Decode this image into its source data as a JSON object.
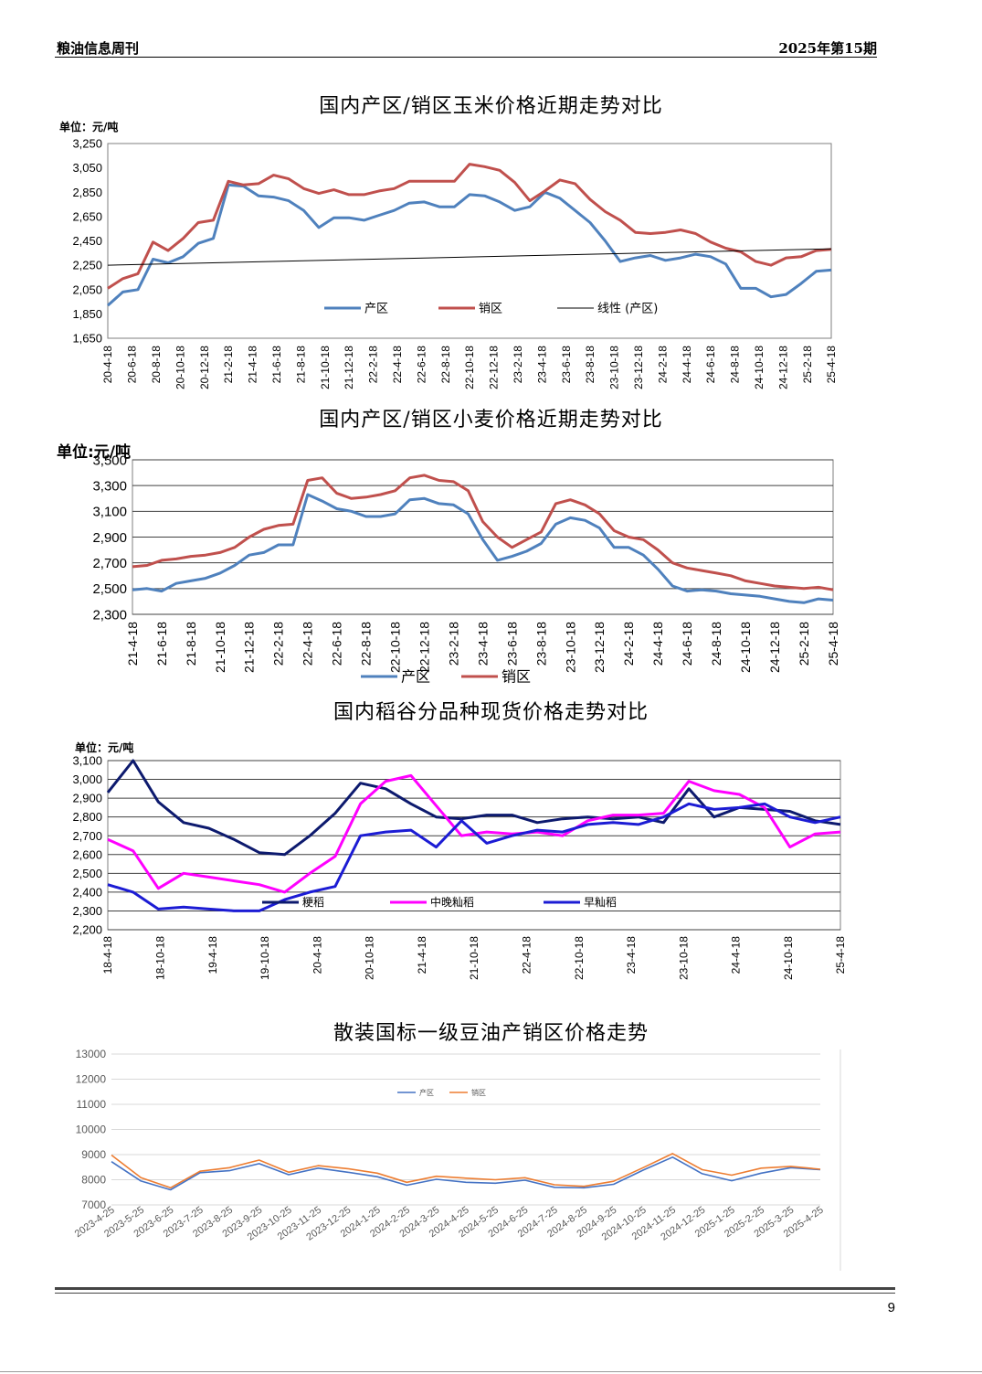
{
  "header": {
    "left": "粮油信息周刊",
    "right": "2025年第15期"
  },
  "page_number": "9",
  "chart_data": [
    {
      "type": "line",
      "title": "国内产区/销区玉米价格近期走势对比",
      "unit_label": "单位：元/吨",
      "ylim": [
        1650,
        3250
      ],
      "yticks": [
        "3,250",
        "3,050",
        "2,850",
        "2,650",
        "2,450",
        "2,250",
        "2,050",
        "1,850",
        "1,650"
      ],
      "x_labels": [
        "20-4-18",
        "20-6-18",
        "20-8-18",
        "20-10-18",
        "20-12-18",
        "21-2-18",
        "21-4-18",
        "21-6-18",
        "21-8-18",
        "21-10-18",
        "21-12-18",
        "22-2-18",
        "22-4-18",
        "22-6-18",
        "22-8-18",
        "22-10-18",
        "22-12-18",
        "23-2-18",
        "23-4-18",
        "23-6-18",
        "23-8-18",
        "23-10-18",
        "23-12-18",
        "24-2-18",
        "24-4-18",
        "24-6-18",
        "24-8-18",
        "24-10-18",
        "24-12-18",
        "25-2-18",
        "25-4-18"
      ],
      "series": [
        {
          "name": "产区",
          "color": "#4f81bd",
          "values": [
            1920,
            2030,
            2050,
            2300,
            2270,
            2320,
            2430,
            2470,
            2910,
            2900,
            2820,
            2810,
            2780,
            2700,
            2560,
            2640,
            2640,
            2620,
            2660,
            2700,
            2760,
            2770,
            2730,
            2730,
            2830,
            2820,
            2770,
            2700,
            2730,
            2850,
            2800,
            2700,
            2600,
            2450,
            2280,
            2310,
            2330,
            2290,
            2310,
            2340,
            2320,
            2260,
            2060,
            2060,
            1990,
            2010,
            2100,
            2200,
            2210
          ]
        },
        {
          "name": "销区",
          "color": "#c0504d",
          "values": [
            2060,
            2140,
            2180,
            2440,
            2370,
            2470,
            2600,
            2620,
            2940,
            2910,
            2920,
            2990,
            2960,
            2880,
            2840,
            2870,
            2830,
            2830,
            2860,
            2880,
            2940,
            2940,
            2940,
            2940,
            3080,
            3060,
            3030,
            2930,
            2780,
            2860,
            2950,
            2920,
            2790,
            2690,
            2620,
            2520,
            2510,
            2520,
            2540,
            2510,
            2440,
            2390,
            2360,
            2280,
            2250,
            2310,
            2320,
            2370,
            2380
          ]
        },
        {
          "name": "线性 (产区)",
          "color": "#000000",
          "values": [
            2250,
            2385
          ]
        }
      ]
    },
    {
      "type": "line",
      "title": "国内产区/销区小麦价格近期走势对比",
      "unit_label": "单位:元/吨",
      "ylim": [
        2300,
        3500
      ],
      "yticks": [
        "3,500",
        "3,300",
        "3,100",
        "2,900",
        "2,700",
        "2,500",
        "2,300"
      ],
      "x_labels": [
        "21-4-18",
        "21-6-18",
        "21-8-18",
        "21-10-18",
        "21-12-18",
        "22-2-18",
        "22-4-18",
        "22-6-18",
        "22-8-18",
        "22-10-18",
        "22-12-18",
        "23-2-18",
        "23-4-18",
        "23-6-18",
        "23-8-18",
        "23-10-18",
        "23-12-18",
        "24-2-18",
        "24-4-18",
        "24-6-18",
        "24-8-18",
        "24-10-18",
        "24-12-18",
        "25-2-18",
        "25-4-18"
      ],
      "series": [
        {
          "name": "产区",
          "color": "#4f81bd",
          "values": [
            2490,
            2500,
            2480,
            2540,
            2560,
            2580,
            2620,
            2680,
            2760,
            2780,
            2840,
            2840,
            3230,
            3180,
            3120,
            3100,
            3060,
            3060,
            3080,
            3190,
            3200,
            3160,
            3150,
            3080,
            2880,
            2720,
            2750,
            2790,
            2850,
            3000,
            3050,
            3030,
            2970,
            2820,
            2820,
            2760,
            2650,
            2520,
            2480,
            2490,
            2480,
            2460,
            2450,
            2440,
            2420,
            2400,
            2390,
            2420,
            2410
          ]
        },
        {
          "name": "销区",
          "color": "#c0504d",
          "values": [
            2670,
            2680,
            2720,
            2730,
            2750,
            2760,
            2780,
            2820,
            2900,
            2960,
            2990,
            3000,
            3340,
            3360,
            3240,
            3200,
            3210,
            3230,
            3260,
            3360,
            3380,
            3340,
            3330,
            3260,
            3020,
            2900,
            2820,
            2880,
            2940,
            3160,
            3190,
            3150,
            3080,
            2950,
            2900,
            2880,
            2800,
            2700,
            2660,
            2640,
            2620,
            2600,
            2560,
            2540,
            2520,
            2510,
            2500,
            2510,
            2490
          ]
        }
      ]
    },
    {
      "type": "line",
      "title": "国内稻谷分品种现货价格走势对比",
      "unit_label": "单位：元/吨",
      "ylim": [
        2200,
        3100
      ],
      "yticks": [
        "3,100",
        "3,000",
        "2,900",
        "2,800",
        "2,700",
        "2,600",
        "2,500",
        "2,400",
        "2,300",
        "2,200"
      ],
      "x_labels": [
        "18-4-18",
        "18-10-18",
        "19-4-18",
        "19-10-18",
        "20-4-18",
        "20-10-18",
        "21-4-18",
        "21-10-18",
        "22-4-18",
        "22-10-18",
        "23-4-18",
        "23-10-18",
        "24-4-18",
        "24-10-18",
        "25-4-18"
      ],
      "series": [
        {
          "name": "粳稻",
          "color": "#0d1a6e",
          "values": [
            2930,
            3100,
            2880,
            2770,
            2740,
            2680,
            2610,
            2600,
            2700,
            2820,
            2980,
            2950,
            2870,
            2800,
            2790,
            2810,
            2810,
            2770,
            2790,
            2800,
            2790,
            2800,
            2770,
            2950,
            2800,
            2850,
            2840,
            2830,
            2780,
            2760
          ]
        },
        {
          "name": "中晚籼稻",
          "color": "#ff00ff",
          "values": [
            2680,
            2620,
            2420,
            2500,
            2480,
            2460,
            2440,
            2400,
            2500,
            2590,
            2870,
            2990,
            3020,
            2860,
            2700,
            2720,
            2710,
            2720,
            2700,
            2780,
            2810,
            2810,
            2820,
            2990,
            2940,
            2920,
            2850,
            2640,
            2710,
            2720
          ]
        },
        {
          "name": "早籼稻",
          "color": "#1c1cd4",
          "values": [
            2440,
            2400,
            2310,
            2320,
            2310,
            2300,
            2300,
            2360,
            2400,
            2430,
            2700,
            2720,
            2730,
            2640,
            2780,
            2660,
            2700,
            2730,
            2720,
            2760,
            2770,
            2760,
            2800,
            2870,
            2840,
            2850,
            2870,
            2800,
            2770,
            2800
          ]
        }
      ]
    },
    {
      "type": "line",
      "title": "散装国标一级豆油产销区价格走势",
      "ylim": [
        7000,
        13000
      ],
      "yticks": [
        "13000",
        "12000",
        "11000",
        "10000",
        "9000",
        "8000",
        "7000"
      ],
      "x_labels": [
        "2023-4-25",
        "2023-5-25",
        "2023-6-25",
        "2023-7-25",
        "2023-8-25",
        "2023-9-25",
        "2023-10-25",
        "2023-11-25",
        "2023-12-25",
        "2024-1-25",
        "2024-2-25",
        "2024-3-25",
        "2024-4-25",
        "2024-5-25",
        "2024-6-25",
        "2024-7-25",
        "2024-8-25",
        "2024-9-25",
        "2024-10-25",
        "2024-11-25",
        "2024-12-25",
        "2025-1-25",
        "2025-2-25",
        "2025-3-25",
        "2025-4-25"
      ],
      "series": [
        {
          "name": "产区",
          "color": "#4472c4",
          "values": [
            8720,
            7950,
            7600,
            8280,
            8360,
            8640,
            8200,
            8460,
            8300,
            8120,
            7780,
            8020,
            7900,
            7860,
            7980,
            7700,
            7680,
            7820,
            8380,
            8900,
            8240,
            7960,
            8260,
            8480,
            8400
          ]
        },
        {
          "name": "销区",
          "color": "#ed7d31",
          "values": [
            8980,
            8080,
            7680,
            8340,
            8480,
            8780,
            8300,
            8560,
            8440,
            8260,
            7900,
            8140,
            8060,
            8000,
            8080,
            7800,
            7740,
            7940,
            8480,
            9040,
            8400,
            8180,
            8460,
            8530,
            8420
          ]
        }
      ]
    }
  ]
}
